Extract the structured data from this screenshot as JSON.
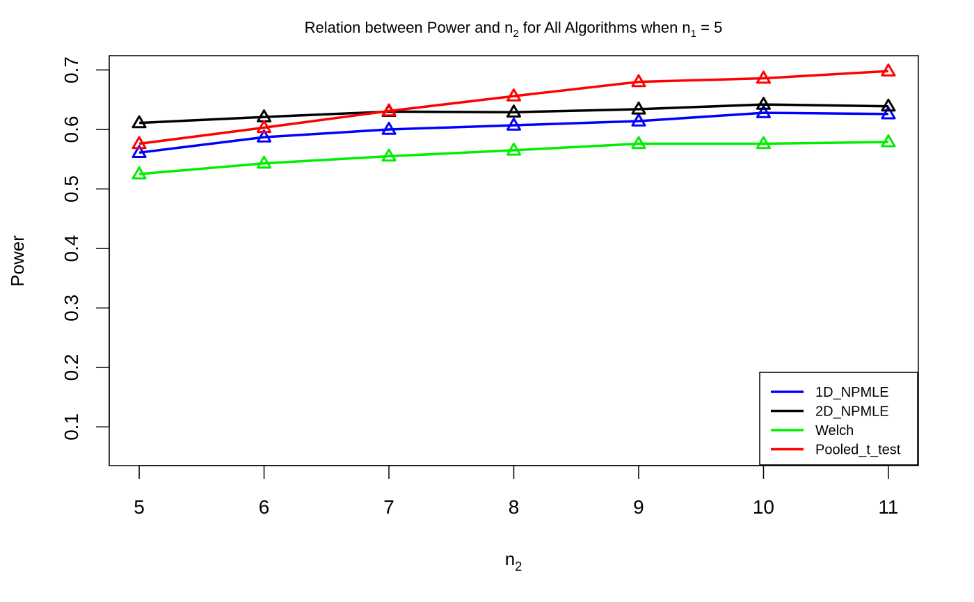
{
  "chart_data": {
    "type": "line",
    "title": {
      "prefix": "Relation between Power and n",
      "sub1": "2",
      "middle": " for All Algorithms when n",
      "sub2": "1",
      "suffix": " = 5"
    },
    "xlabel": {
      "base": "n",
      "sub": "2"
    },
    "ylabel": "Power",
    "x": [
      5,
      6,
      7,
      8,
      9,
      10,
      11
    ],
    "xlim": [
      4.76,
      11.24
    ],
    "ylim": [
      0.035,
      0.724
    ],
    "x_ticks": [
      5,
      6,
      7,
      8,
      9,
      10,
      11
    ],
    "y_ticks": [
      0.1,
      0.2,
      0.3,
      0.4,
      0.5,
      0.6,
      0.7
    ],
    "y_tick_labels": [
      "0.1",
      "0.2",
      "0.3",
      "0.4",
      "0.5",
      "0.6",
      "0.7"
    ],
    "marker": "open-triangle",
    "grid": false,
    "legend_position": "bottom-right",
    "series": [
      {
        "name": "1D_NPMLE",
        "color": "#0000ff",
        "values": [
          0.561,
          0.587,
          0.6,
          0.607,
          0.614,
          0.628,
          0.626
        ]
      },
      {
        "name": "2D_NPMLE",
        "color": "#000000",
        "values": [
          0.611,
          0.621,
          0.63,
          0.629,
          0.634,
          0.642,
          0.639
        ]
      },
      {
        "name": "Welch",
        "color": "#00ee00",
        "values": [
          0.525,
          0.543,
          0.555,
          0.565,
          0.576,
          0.576,
          0.579
        ]
      },
      {
        "name": "Pooled_t_test",
        "color": "#ff0000",
        "values": [
          0.576,
          0.603,
          0.631,
          0.656,
          0.68,
          0.686,
          0.698
        ]
      }
    ]
  }
}
